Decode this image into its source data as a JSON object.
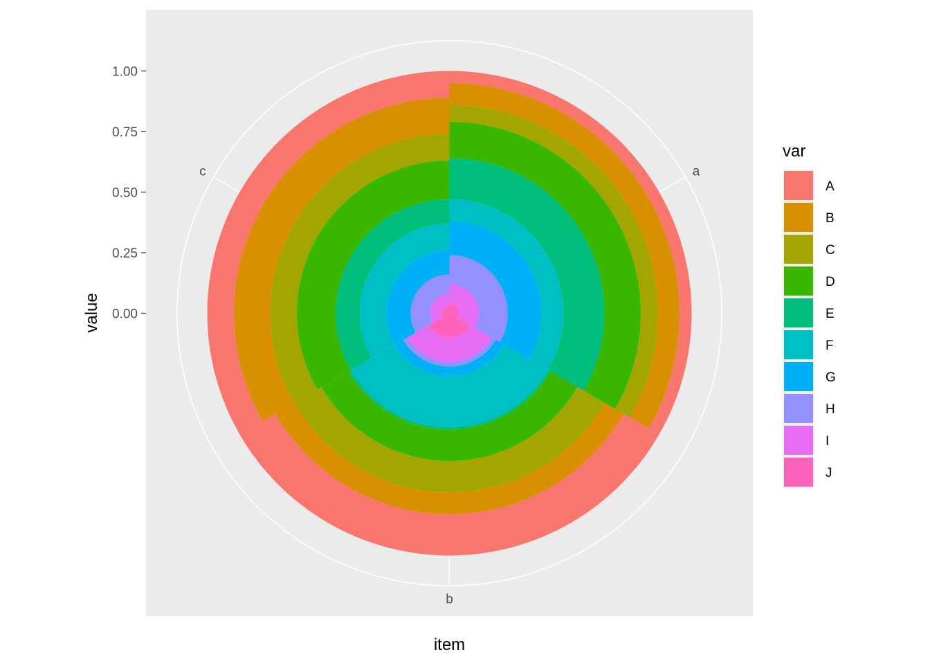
{
  "chart_data": {
    "type": "bar",
    "coord": "polar",
    "stacked": true,
    "categories": [
      "a",
      "b",
      "c"
    ],
    "x_label": "item",
    "y_label": "value",
    "y_ticks": [
      "0.00",
      "0.25",
      "0.50",
      "0.75",
      "1.00"
    ],
    "y_tick_values": [
      0,
      0.25,
      0.5,
      0.75,
      1.0
    ],
    "ylim": [
      0,
      1.0
    ],
    "legend": {
      "title": "var",
      "position": "right"
    },
    "series": [
      {
        "name": "A",
        "color": "#F8766D",
        "values": [
          0.05,
          0.17,
          0.11
        ]
      },
      {
        "name": "B",
        "color": "#D89000",
        "values": [
          0.09,
          0.09,
          0.15
        ]
      },
      {
        "name": "C",
        "color": "#A3A500",
        "values": [
          0.07,
          0.13,
          0.11
        ]
      },
      {
        "name": "D",
        "color": "#39B600",
        "values": [
          0.15,
          0.13,
          0.16
        ]
      },
      {
        "name": "E",
        "color": "#00BF7D",
        "values": [
          0.17,
          0.01,
          0.1
        ]
      },
      {
        "name": "F",
        "color": "#00BFC4",
        "values": [
          0.09,
          0.21,
          0.11
        ]
      },
      {
        "name": "G",
        "color": "#00B0F6",
        "values": [
          0.14,
          0.04,
          0.1
        ]
      },
      {
        "name": "H",
        "color": "#9590FF",
        "values": [
          0.12,
          0.02,
          0.08
        ]
      },
      {
        "name": "I",
        "color": "#E76BF3",
        "values": [
          0.08,
          0.1,
          0.05
        ]
      },
      {
        "name": "J",
        "color": "#FF62BC",
        "values": [
          0.04,
          0.1,
          0.03
        ]
      }
    ]
  }
}
